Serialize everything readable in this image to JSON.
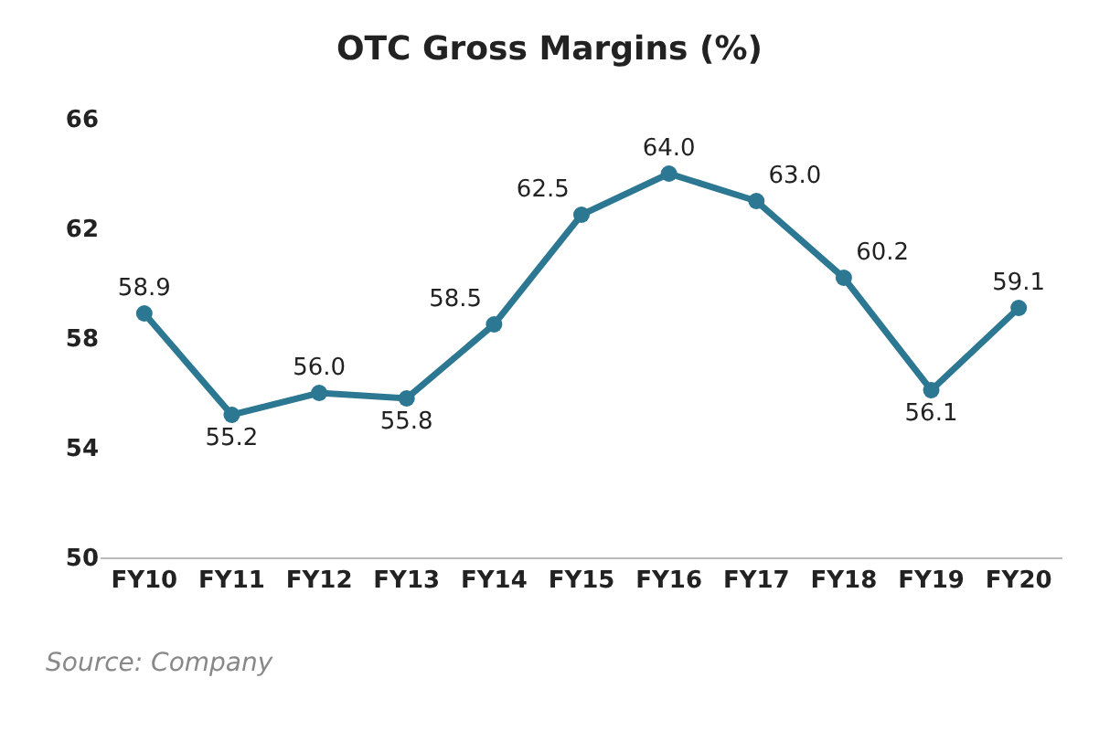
{
  "chart_data": {
    "type": "line",
    "title": "OTC Gross Margins (%)",
    "categories": [
      "FY10",
      "FY11",
      "FY12",
      "FY13",
      "FY14",
      "FY15",
      "FY16",
      "FY17",
      "FY18",
      "FY19",
      "FY20"
    ],
    "series": [
      {
        "color": "#2c7792",
        "values": [
          58.9,
          55.2,
          56.0,
          55.8,
          58.5,
          62.5,
          64.0,
          63.0,
          60.2,
          56.1,
          59.1
        ],
        "value_labels": [
          "58.9",
          "55.2",
          "56.0",
          "55.8",
          "58.5",
          "62.5",
          "64.0",
          "63.0",
          "60.2",
          "56.1",
          "59.1"
        ]
      }
    ],
    "ylim": [
      50,
      66
    ],
    "yticks": [
      50,
      54,
      58,
      62,
      66
    ],
    "grid": false,
    "legend": false,
    "marker": "circle",
    "line_style": "solid",
    "annotations": [
      "Source: Company"
    ]
  }
}
